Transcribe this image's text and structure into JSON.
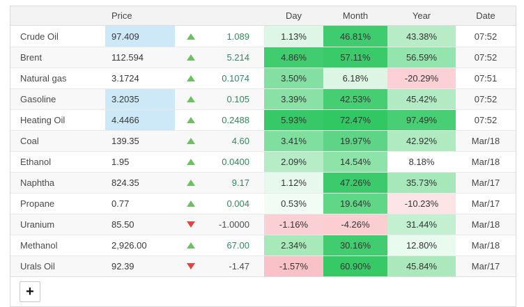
{
  "table": {
    "headers": {
      "name": "",
      "price": "Price",
      "day": "Day",
      "month": "Month",
      "year": "Year",
      "date": "Date"
    },
    "rows": [
      {
        "name": "Crude Oil",
        "price": "97.409",
        "price_highlight": true,
        "direction": "up",
        "change": "1.089",
        "day": "1.13%",
        "day_bg": "#def6e6",
        "month": "46.81%",
        "month_bg": "#3fcc6e",
        "year": "43.38%",
        "year_bg": "#b7ecc6",
        "date": "07:52"
      },
      {
        "name": "Brent",
        "price": "112.594",
        "price_highlight": false,
        "direction": "up",
        "change": "5.214",
        "day": "4.86%",
        "day_bg": "#41cc70",
        "month": "57.11%",
        "month_bg": "#3aca6a",
        "year": "56.59%",
        "year_bg": "#94e4ae",
        "date": "07:52"
      },
      {
        "name": "Natural gas",
        "price": "3.1724",
        "price_highlight": false,
        "direction": "up",
        "change": "0.1074",
        "day": "3.50%",
        "day_bg": "#83e0a2",
        "month": "6.18%",
        "month_bg": "#dcf6e3",
        "year": "-20.29%",
        "year_bg": "#fbd1d5",
        "date": "07:51"
      },
      {
        "name": "Gasoline",
        "price": "3.2035",
        "price_highlight": true,
        "direction": "up",
        "change": "0.105",
        "day": "3.39%",
        "day_bg": "#89e1a5",
        "month": "42.53%",
        "month_bg": "#46ce72",
        "year": "45.42%",
        "year_bg": "#b2ebc3",
        "date": "07:52"
      },
      {
        "name": "Heating Oil",
        "price": "4.4466",
        "price_highlight": true,
        "direction": "up",
        "change": "0.2488",
        "day": "5.93%",
        "day_bg": "#37c967",
        "month": "72.47%",
        "month_bg": "#31c863",
        "year": "97.49%",
        "year_bg": "#48cf74",
        "date": "07:52"
      },
      {
        "name": "Coal",
        "price": "139.35",
        "price_highlight": false,
        "direction": "up",
        "change": "4.60",
        "day": "3.41%",
        "day_bg": "#7fdf9e",
        "month": "19.97%",
        "month_bg": "#5ed586",
        "year": "42.92%",
        "year_bg": "#b0eac1",
        "date": "Mar/18"
      },
      {
        "name": "Ethanol",
        "price": "1.95",
        "price_highlight": false,
        "direction": "up",
        "change": "0.0400",
        "day": "2.09%",
        "day_bg": "#b6edc6",
        "month": "14.54%",
        "month_bg": "#8ee3a9",
        "year": "8.18%",
        "year_bg": "#ffffff",
        "date": "Mar/18"
      },
      {
        "name": "Naphtha",
        "price": "824.35",
        "price_highlight": false,
        "direction": "up",
        "change": "9.17",
        "day": "1.12%",
        "day_bg": "#e7f9ec",
        "month": "47.26%",
        "month_bg": "#3bcb6c",
        "year": "35.73%",
        "year_bg": "#a6e8b9",
        "date": "Mar/17"
      },
      {
        "name": "Propane",
        "price": "0.77",
        "price_highlight": false,
        "direction": "up",
        "change": "0.004",
        "day": "0.53%",
        "day_bg": "#f0fcf4",
        "month": "19.64%",
        "month_bg": "#60d687",
        "year": "-10.23%",
        "year_bg": "#fde4e6",
        "date": "Mar/17"
      },
      {
        "name": "Uranium",
        "price": "85.50",
        "price_highlight": false,
        "direction": "down",
        "change": "-1.0000",
        "day": "-1.16%",
        "day_bg": "#fbd0d5",
        "month": "-4.26%",
        "month_bg": "#fbced2",
        "year": "31.44%",
        "year_bg": "#c3f0d0",
        "date": "Mar/18"
      },
      {
        "name": "Methanol",
        "price": "2,926.00",
        "price_highlight": false,
        "direction": "up",
        "change": "67.00",
        "day": "2.34%",
        "day_bg": "#a8e9ba",
        "month": "30.16%",
        "month_bg": "#41cc6f",
        "year": "12.80%",
        "year_bg": "#e9faee",
        "date": "Mar/18"
      },
      {
        "name": "Urals Oil",
        "price": "92.39",
        "price_highlight": false,
        "direction": "down",
        "change": "-1.47",
        "day": "-1.57%",
        "day_bg": "#f9c2c8",
        "month": "60.90%",
        "month_bg": "#36c966",
        "year": "45.84%",
        "year_bg": "#abe9bd",
        "date": "Mar/17"
      }
    ],
    "footer": {
      "add_button_label": "+"
    }
  },
  "colors": {
    "price_highlight": "#cde9f7",
    "up_arrow": "#6dc061",
    "down_arrow": "#e04444",
    "positive_change_text": "#2f8a57",
    "header_bg": "#f3f3f3"
  }
}
